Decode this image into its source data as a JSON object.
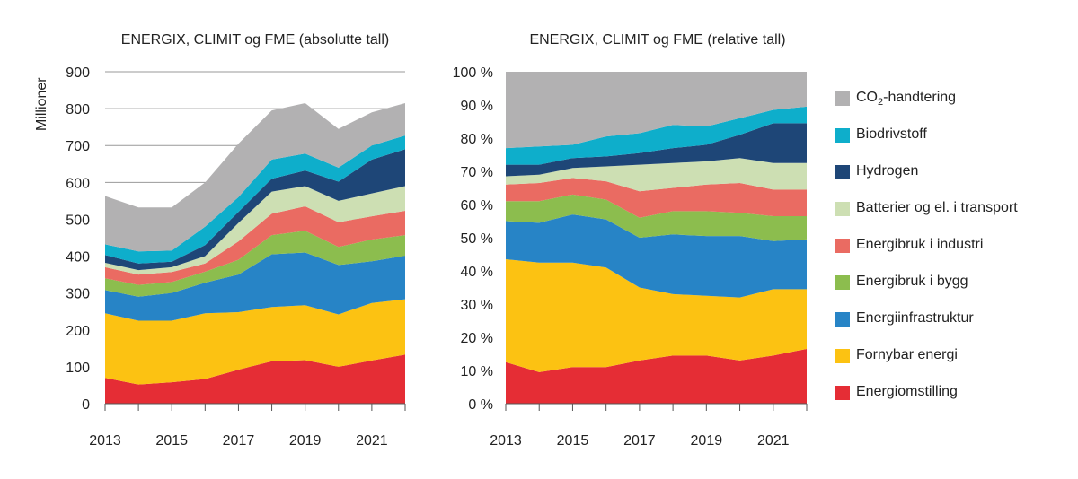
{
  "chart_data": [
    {
      "type": "area",
      "stacked": true,
      "title": "ENERGIX, CLIMIT og FME (absolutte tall)",
      "ylabel": "Millioner",
      "xlabel": "",
      "x": [
        2013,
        2014,
        2015,
        2016,
        2017,
        2018,
        2019,
        2020,
        2021,
        2022
      ],
      "xticks": [
        "2013",
        "2015",
        "2017",
        "2019",
        "2021"
      ],
      "ylim": [
        0,
        900
      ],
      "yticks": [
        "0",
        "100",
        "200",
        "300",
        "400",
        "500",
        "600",
        "700",
        "800",
        "900"
      ],
      "grid": true,
      "series": [
        {
          "name": "Energiomstilling",
          "color": "#e52d35",
          "values": [
            70,
            52,
            58,
            67,
            92,
            115,
            118,
            100,
            117,
            133
          ]
        },
        {
          "name": "Fornybar energi",
          "color": "#fcc212",
          "values": [
            175,
            173,
            167,
            178,
            156,
            147,
            149,
            142,
            156,
            150
          ]
        },
        {
          "name": "Energiinfrastruktur",
          "color": "#2784c6",
          "values": [
            63,
            65,
            75,
            83,
            102,
            143,
            143,
            134,
            113,
            118
          ]
        },
        {
          "name": "Energibruk i bygg",
          "color": "#8cbd4e",
          "values": [
            32,
            32,
            30,
            30,
            40,
            52,
            59,
            49,
            59,
            56
          ]
        },
        {
          "name": "Energibruk i industri",
          "color": "#ea6b62",
          "values": [
            30,
            28,
            27,
            22,
            50,
            58,
            66,
            67,
            63,
            66
          ]
        },
        {
          "name": "Batterier og el. i transport",
          "color": "#cddfb3",
          "values": [
            12,
            12,
            13,
            20,
            50,
            60,
            55,
            58,
            62,
            67
          ]
        },
        {
          "name": "Hydrogen",
          "color": "#1e4677",
          "values": [
            21,
            18,
            15,
            30,
            30,
            35,
            42,
            52,
            92,
            100
          ]
        },
        {
          "name": "Biodrivstoff",
          "color": "#0eaecb",
          "values": [
            29,
            33,
            30,
            50,
            40,
            52,
            46,
            38,
            38,
            37
          ]
        },
        {
          "name": "CO2-handtering",
          "color": "#b2b1b2",
          "values": [
            131,
            119,
            117,
            120,
            145,
            133,
            137,
            105,
            90,
            88
          ]
        }
      ]
    },
    {
      "type": "area",
      "stacked": true,
      "title": "ENERGIX, CLIMIT og FME (relative tall)",
      "xlabel": "",
      "ylabel": "",
      "x": [
        2013,
        2014,
        2015,
        2016,
        2017,
        2018,
        2019,
        2020,
        2021,
        2022
      ],
      "xticks": [
        "2013",
        "2015",
        "2017",
        "2019",
        "2021"
      ],
      "ylim": [
        0,
        100
      ],
      "yticks": [
        "0 %",
        "10 %",
        "20 %",
        "30 %",
        "40 %",
        "50 %",
        "60 %",
        "70 %",
        "80 %",
        "90 %",
        "100 %"
      ],
      "series": [
        {
          "name": "Energiomstilling",
          "values": [
            12.5,
            9.5,
            11,
            11,
            13,
            14.5,
            14.5,
            13,
            14.5,
            16.5
          ]
        },
        {
          "name": "Fornybar energi",
          "values": [
            31,
            33,
            31.5,
            30,
            22,
            18.5,
            18,
            19,
            20,
            18
          ]
        },
        {
          "name": "Energiinfrastruktur",
          "values": [
            11.5,
            12,
            14.5,
            14.5,
            15,
            18,
            18,
            18.5,
            14.5,
            15
          ]
        },
        {
          "name": "Energibruk i bygg",
          "values": [
            6,
            6.5,
            6,
            6,
            6,
            7,
            7.5,
            7,
            7.5,
            7
          ]
        },
        {
          "name": "Energibruk i industri",
          "values": [
            5,
            5.5,
            5,
            5.5,
            8,
            7,
            8,
            9,
            8,
            8
          ]
        },
        {
          "name": "Batterier og el. i transport",
          "values": [
            2.5,
            2.5,
            3,
            4.5,
            8,
            7.5,
            7,
            7.5,
            8,
            8
          ]
        },
        {
          "name": "Hydrogen",
          "values": [
            3.5,
            3,
            3,
            3,
            3.5,
            4.5,
            5,
            7,
            12,
            12
          ]
        },
        {
          "name": "Biodrivstoff",
          "values": [
            5,
            5.5,
            4,
            6,
            6,
            7,
            5.5,
            5,
            4,
            5
          ]
        },
        {
          "name": "CO2-handtering",
          "values": [
            23,
            22.5,
            22,
            19.5,
            18.5,
            16,
            16.5,
            14,
            11.5,
            10.5
          ]
        }
      ]
    }
  ],
  "legend": {
    "placement": "right",
    "items": [
      {
        "label_pre": "CO",
        "label_sub": "2",
        "label_post": "-handtering",
        "color": "#b2b1b2"
      },
      {
        "label": "Biodrivstoff",
        "color": "#0eaecb"
      },
      {
        "label": "Hydrogen",
        "color": "#1e4677"
      },
      {
        "label": "Batterier og el. i transport",
        "color": "#cddfb3"
      },
      {
        "label": "Energibruk i industri",
        "color": "#ea6b62"
      },
      {
        "label": "Energibruk i bygg",
        "color": "#8cbd4e"
      },
      {
        "label": "Energiinfrastruktur",
        "color": "#2784c6"
      },
      {
        "label": "Fornybar energi",
        "color": "#fcc212"
      },
      {
        "label": "Energiomstilling",
        "color": "#e52d35"
      }
    ]
  }
}
